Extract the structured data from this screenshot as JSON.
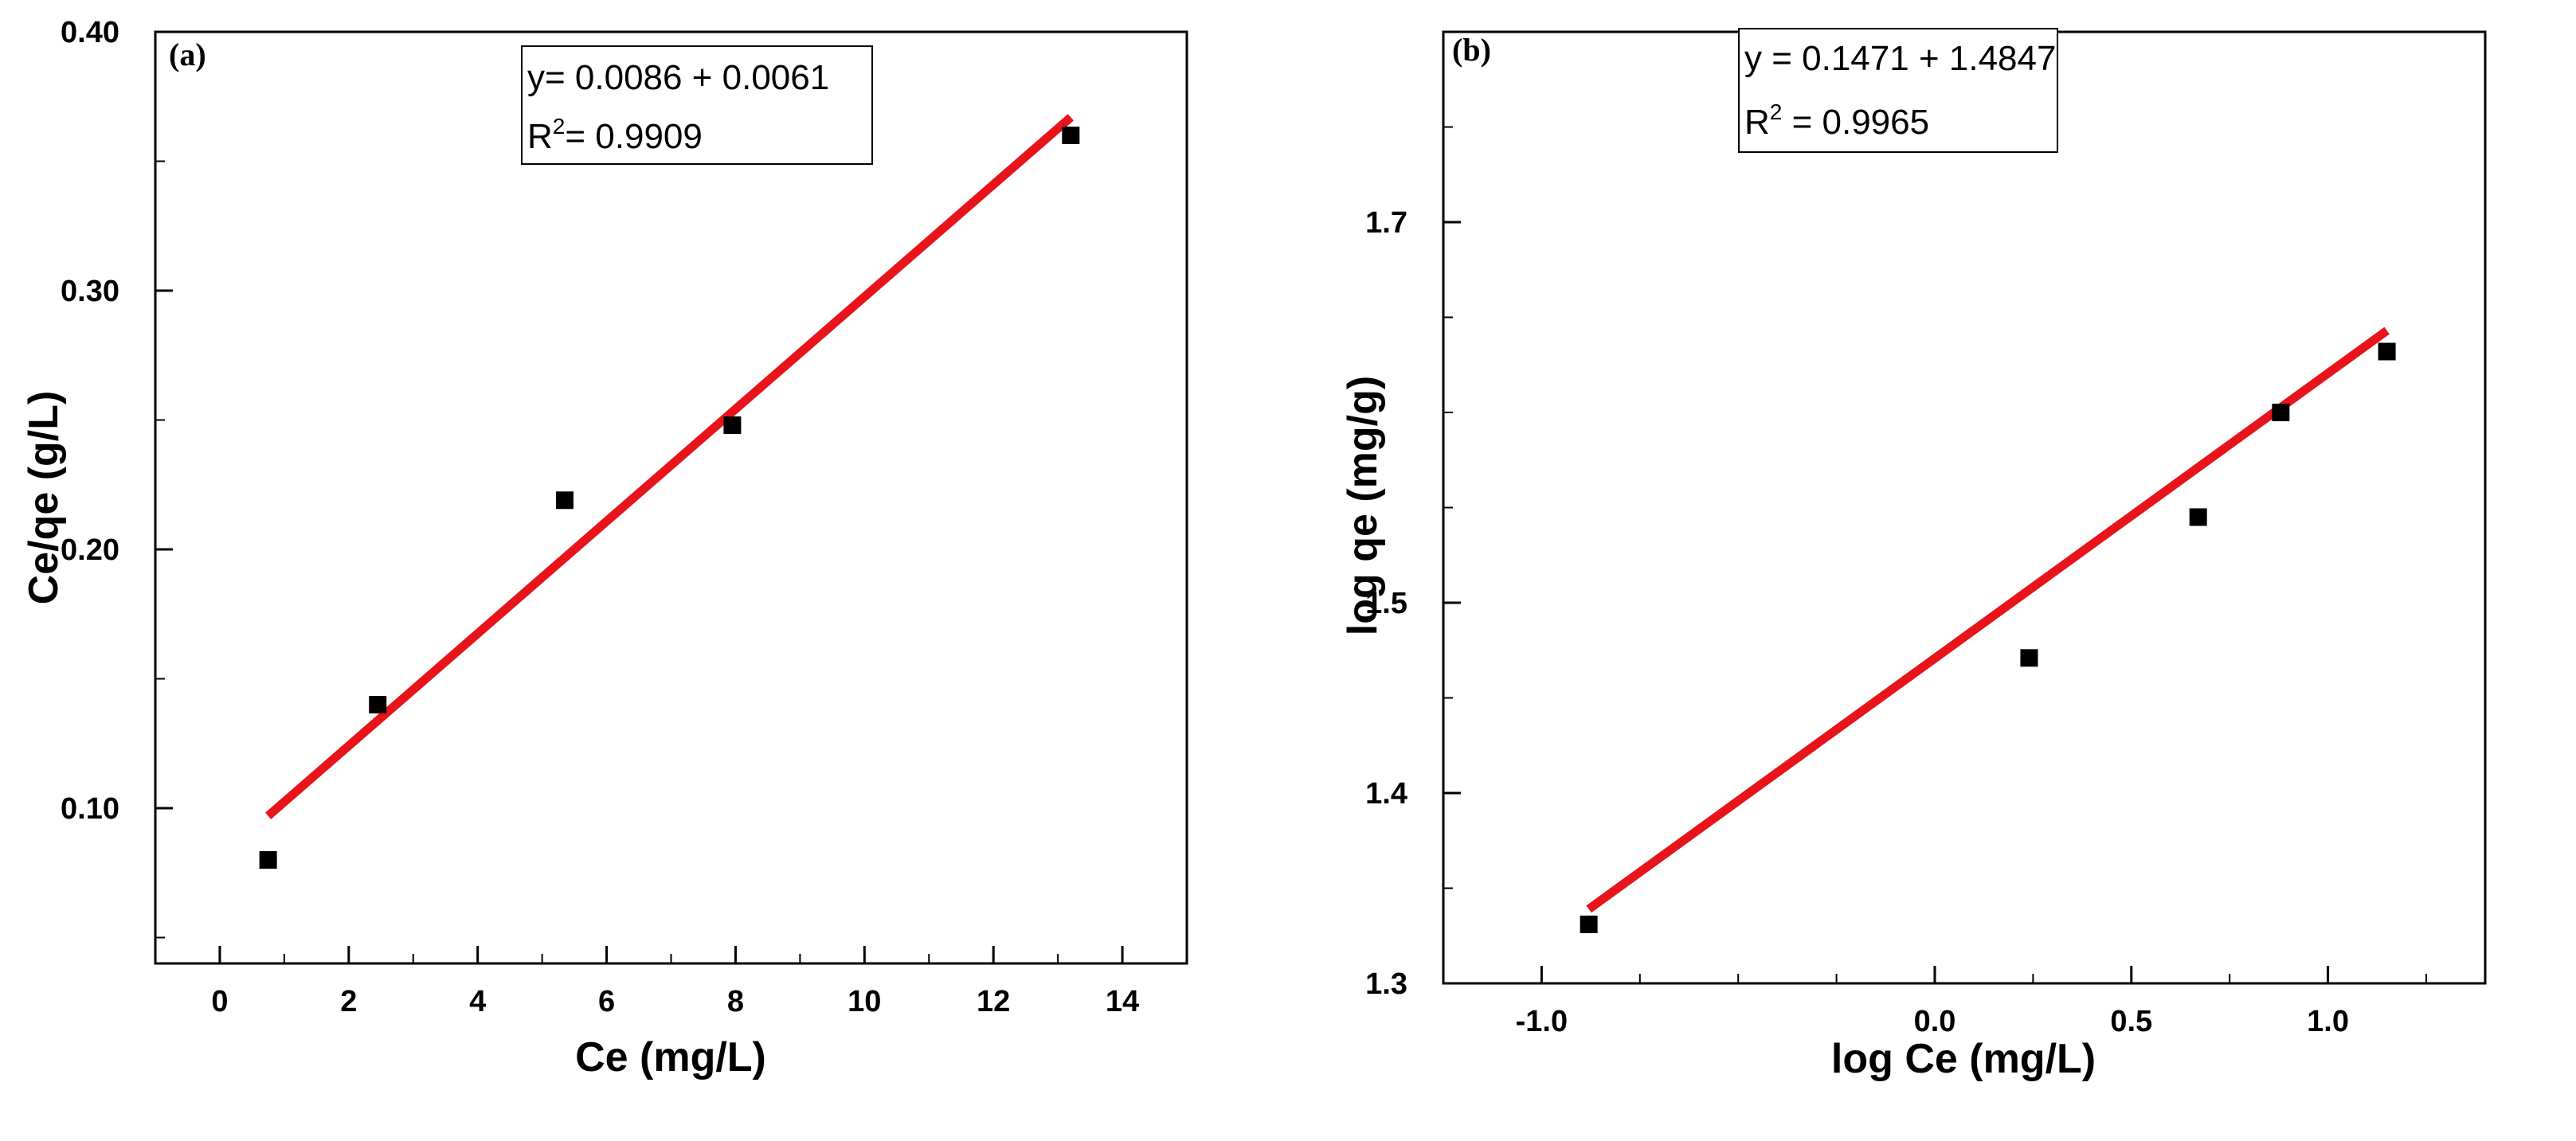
{
  "chart_data": [
    {
      "type": "scatter",
      "panel_label": "(a)",
      "xlabel": "Ce (mg/L)",
      "ylabel": "Ce/qe (g/L)",
      "xlim": [
        -1,
        15
      ],
      "ylim": [
        0.04,
        0.4
      ],
      "xticks": [
        0,
        2,
        4,
        6,
        8,
        10,
        12,
        14
      ],
      "xtick_labels": [
        "0",
        "2",
        "4",
        "6",
        "8",
        "10",
        "12",
        "14"
      ],
      "yticks": [
        0.1,
        0.2,
        0.3,
        0.4
      ],
      "ytick_labels": [
        "0.10",
        "0.20",
        "0.30",
        "0.40"
      ],
      "points": {
        "x": [
          0.75,
          2.45,
          5.35,
          7.95,
          13.2
        ],
        "y": [
          0.08,
          0.14,
          0.219,
          0.248,
          0.36
        ]
      },
      "fit_line": {
        "x": [
          0.75,
          13.2
        ],
        "y": [
          0.097,
          0.367
        ],
        "color": "#e8141b"
      },
      "equation": "y= 0.0086 + 0.0061",
      "r2_label": "R",
      "r2_sup": "2",
      "r2_value": "= 0.9909",
      "grid": false,
      "legend_placement": "top-right"
    },
    {
      "type": "scatter",
      "panel_label": "(b)",
      "xlabel": "log Ce (mg/L)",
      "ylabel": "log qe (mg/g)",
      "xlim": [
        -1.25,
        1.4
      ],
      "ylim": [
        1.3,
        1.8
      ],
      "xticks": [
        -1.0,
        0.0,
        0.5,
        1.0
      ],
      "xtick_labels": [
        "-1.0",
        "0.0",
        "0.5",
        "1.0"
      ],
      "yticks": [
        1.3,
        1.4,
        1.5,
        1.7
      ],
      "ytick_labels": [
        "1.3",
        "1.4",
        "1.5",
        "1.7"
      ],
      "points": {
        "x": [
          -0.88,
          0.24,
          0.67,
          0.88,
          1.15
        ],
        "y": [
          1.331,
          1.471,
          1.545,
          1.6,
          1.632
        ]
      },
      "fit_line": {
        "x": [
          -0.88,
          1.15
        ],
        "y": [
          1.339,
          1.643
        ],
        "color": "#e8141b"
      },
      "equation": "y = 0.1471 + 1.4847",
      "r2_label": "R",
      "r2_sup": "2",
      "r2_value": " = 0.9965",
      "grid": false,
      "legend_placement": "top-left"
    }
  ]
}
